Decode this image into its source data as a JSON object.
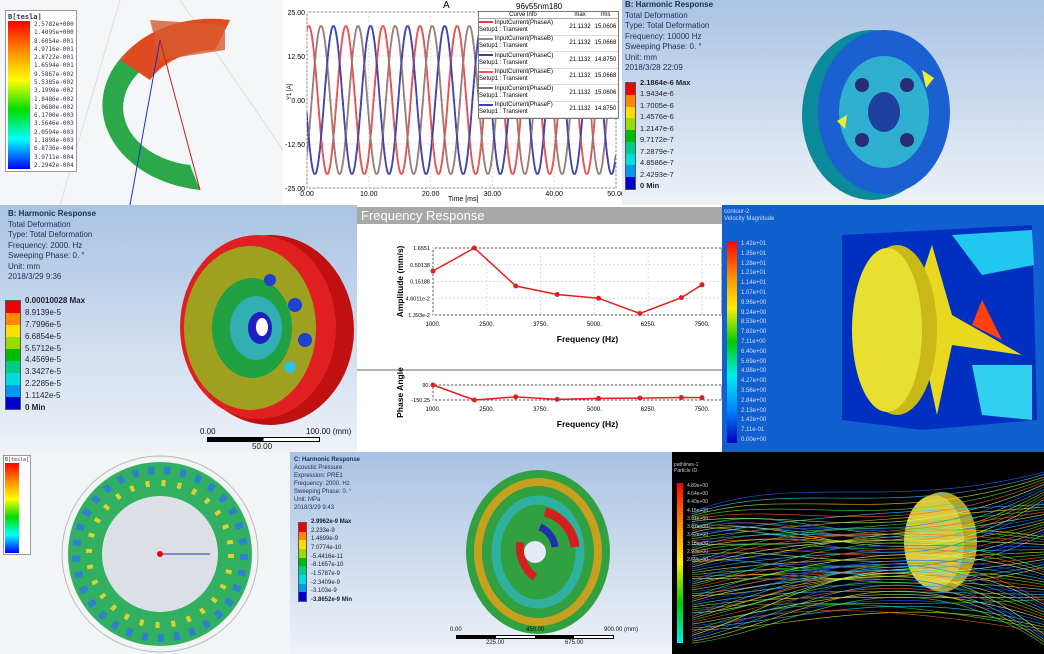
{
  "p1": {
    "title": "B[tesla]",
    "values": [
      "2.5782e+000",
      "1.4095e+000",
      "8.6054e-001",
      "4.9716e-001",
      "2.8722e-001",
      "1.6594e-001",
      "9.5867e-002",
      "5.5385e-002",
      "3.1998e-002",
      "1.8486e-002",
      "1.0680e-002",
      "6.1700e-003",
      "3.5646e-003",
      "2.0594e-003",
      "1.1898e-003",
      "6.8736e-004",
      "3.9711e-004",
      "2.2942e-004"
    ]
  },
  "chart_data": [
    {
      "type": "line",
      "title": "A",
      "subtitle": "96v55nm180",
      "xlabel": "Time [ms]",
      "ylabel": "Y1 [A]",
      "xlim": [
        0,
        50
      ],
      "ylim": [
        -25,
        25
      ],
      "xticks": [
        "0.00",
        "10.00",
        "20.00",
        "30.00",
        "40.00",
        "50.00"
      ],
      "yticks": [
        "25.00",
        "12.50",
        "0.00",
        "-12.50",
        "-25.00"
      ],
      "grid": true,
      "legend": "top-right",
      "legend_header": [
        "Curve Info",
        "max",
        "rms"
      ],
      "amplitude": 21.1132,
      "period_ms": 6,
      "series": [
        {
          "name": "InputCurrent(PhaseA)",
          "sub": "Setup1 : Transient",
          "max": "21.1132",
          "rms": "15.0606",
          "color": "#e0403c",
          "phase_deg": 0
        },
        {
          "name": "InputCurrent(PhaseB)",
          "sub": "Setup1 : Transient",
          "max": "21.1132",
          "rms": "15.0668",
          "color": "#a08888",
          "phase_deg": 120
        },
        {
          "name": "InputCurrent(PhaseC)",
          "sub": "Setup1 : Transient",
          "max": "21.1132",
          "rms": "14.8750",
          "color": "#3a3ea0",
          "phase_deg": 240
        },
        {
          "name": "InputCurrent(PhaseE)",
          "sub": "Setup1 : Transient",
          "max": "21.1132",
          "rms": "15.0668",
          "color": "#e85a5a",
          "phase_deg": 0
        },
        {
          "name": "InputCurrent(PhaseD)",
          "sub": "Setup1 : Transient",
          "max": "21.1132",
          "rms": "15.0606",
          "color": "#907070",
          "phase_deg": 120
        },
        {
          "name": "InputCurrent(PhaseF)",
          "sub": "Setup1 : Transient",
          "max": "21.1132",
          "rms": "14.8750",
          "color": "#4040b0",
          "phase_deg": 240
        }
      ]
    },
    {
      "type": "line",
      "title": "Frequency Response",
      "xlabel": "Frequency (Hz)",
      "ylabel": "Amplitude (mm/s)",
      "yscale": "log",
      "xlim": [
        1000,
        7500
      ],
      "xticks": [
        "1000.",
        "2500.",
        "3750.",
        "5000.",
        "6250.",
        "7500."
      ],
      "yticks": [
        "1.6551",
        "0.50138",
        "0.15188",
        "4.6011e-2",
        "1.393e-2"
      ],
      "ylim": [
        0.01393,
        1.6551
      ],
      "x": [
        1000,
        2000,
        3000,
        4000,
        5000,
        6000,
        7000,
        7500
      ],
      "values": [
        0.32,
        1.6551,
        0.11,
        0.06,
        0.046,
        0.0155,
        0.048,
        0.12
      ],
      "color": "#e02020"
    },
    {
      "type": "line",
      "xlabel": "Frequency (Hz)",
      "ylabel": "Phase Angle",
      "xlim": [
        1000,
        7500
      ],
      "ylim": [
        -150.25,
        90
      ],
      "xticks": [
        "1000.",
        "2500.",
        "3750.",
        "5000.",
        "6250.",
        "7500."
      ],
      "yticks": [
        "90.",
        "-150.25"
      ],
      "x": [
        1000,
        2000,
        3000,
        4000,
        5000,
        6000,
        7000,
        7500
      ],
      "values": [
        90,
        -150,
        -100,
        -140,
        -125,
        -120,
        -110,
        -112
      ],
      "color": "#e02020"
    }
  ],
  "p3": {
    "lines": [
      "B: Harmonic Response",
      "Total Deformation",
      "Type: Total Deformation",
      "Frequency: 10000 Hz",
      "Sweeping Phase: 0. °",
      "Unit: mm",
      "2018/3/28 22:09"
    ],
    "values": [
      "2.1864e-6 Max",
      "1.9434e-6",
      "1.7005e-6",
      "1.4576e-6",
      "1.2147e-6",
      "9.7172e-7",
      "7.2879e-7",
      "4.8586e-7",
      "2.4293e-7",
      "0 Min"
    ]
  },
  "p4": {
    "lines": [
      "B: Harmonic Response",
      "Total Deformation",
      "Type: Total Deformation",
      "Frequency: 2000. Hz",
      "Sweeping Phase: 0. °",
      "Unit: mm",
      "2018/3/29 9:36"
    ],
    "values": [
      "0.00010028 Max",
      "8.9139e-5",
      "7.7996e-5",
      "6.6854e-5",
      "5.5712e-5",
      "4.4569e-5",
      "3.3427e-5",
      "2.2285e-5",
      "1.1142e-5",
      "0 Min"
    ],
    "scale": {
      "left": "0.00",
      "right": "100.00 (mm)",
      "mid": "50.00"
    }
  },
  "p6": {
    "header": [
      "contour-2",
      "Velocity Magnitude"
    ],
    "values": [
      "1.42e+01",
      "1.35e+01",
      "1.28e+01",
      "1.21e+01",
      "1.14e+01",
      "1.07e+01",
      "9.96e+00",
      "9.24e+00",
      "8.53e+00",
      "7.82e+00",
      "7.11e+00",
      "6.40e+00",
      "5.69e+00",
      "4.98e+00",
      "4.27e+00",
      "3.56e+00",
      "2.84e+00",
      "2.13e+00",
      "1.42e+00",
      "7.11e-01",
      "0.00e+00"
    ]
  },
  "p7": {
    "title": "B[tesla]"
  },
  "p8": {
    "lines": [
      "C: Harmonic Response",
      "Acoustic Pressure",
      "Expression: PRE1",
      "Frequency: 2000. Hz",
      "Sweeping Phase: 0. °",
      "Unit: MPa",
      "2018/3/29 9:43"
    ],
    "values": [
      "2.9962e-9 Max",
      "2.233e-9",
      "1.4699e-9",
      "7.0774e-10",
      "-5.4416e-11",
      "-8.1657e-10",
      "-1.5787e-9",
      "-2.3409e-9",
      "-3.103e-9",
      "-3.8652e-9 Min"
    ],
    "scale": {
      "left": "0.00",
      "mid": "450.00",
      "right": "900.00 (mm)",
      "q1": "225.00",
      "q3": "675.00"
    }
  },
  "p9": {
    "header": [
      "pathlines-1",
      "Particle ID"
    ],
    "values": [
      "4.89e+00",
      "4.64e+00",
      "4.40e+00",
      "4.15e+00",
      "3.91e+00",
      "3.67e+00",
      "3.42e+00",
      "3.18e+00",
      "2.93e+00",
      "2.69e+00"
    ]
  }
}
